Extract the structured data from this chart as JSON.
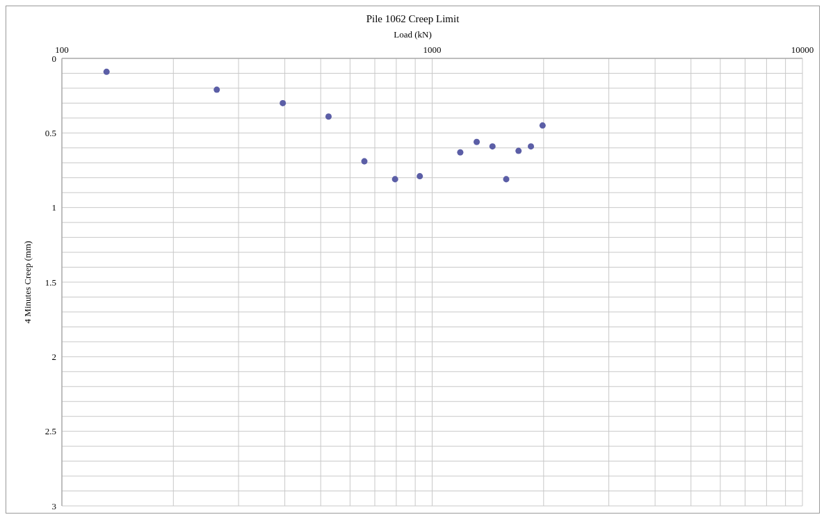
{
  "chart_data": {
    "type": "scatter",
    "title": "Pile 1062 Creep Limit",
    "xlabel": "Load (kN)",
    "ylabel": "4 Minutes Creep (mm)",
    "log": "x",
    "grid": true,
    "marker": "circle",
    "xlim": [
      100,
      10000
    ],
    "xticks": [
      100,
      {
        "value": 200,
        "label": null
      },
      {
        "value": 300,
        "label": null
      },
      {
        "value": 400,
        "label": null
      },
      {
        "value": 500,
        "label": null
      },
      {
        "value": 600,
        "label": null
      },
      {
        "value": 700,
        "label": null
      },
      {
        "value": 800,
        "label": null
      },
      {
        "value": 900,
        "label": null
      },
      1000,
      {
        "value": 2000,
        "label": null
      },
      {
        "value": 3000,
        "label": null
      },
      {
        "value": 4000,
        "label": null
      },
      {
        "value": 5000,
        "label": null
      },
      {
        "value": 6000,
        "label": null
      },
      {
        "value": 7000,
        "label": null
      },
      {
        "value": 8000,
        "label": null
      },
      {
        "value": 9000,
        "label": null
      },
      10000
    ],
    "ylim": [
      3,
      0
    ],
    "yticks": [
      0,
      {
        "value": 0.1,
        "label": null
      },
      {
        "value": 0.2,
        "label": null
      },
      {
        "value": 0.3,
        "label": null
      },
      {
        "value": 0.4,
        "label": null
      },
      0.5,
      {
        "value": 0.6,
        "label": null
      },
      {
        "value": 0.7,
        "label": null
      },
      {
        "value": 0.8,
        "label": null
      },
      {
        "value": 0.9,
        "label": null
      },
      1,
      {
        "value": 1.1,
        "label": null
      },
      {
        "value": 1.2,
        "label": null
      },
      {
        "value": 1.3,
        "label": null
      },
      {
        "value": 1.4,
        "label": null
      },
      1.5,
      {
        "value": 1.6,
        "label": null
      },
      {
        "value": 1.7,
        "label": null
      },
      {
        "value": 1.8,
        "label": null
      },
      {
        "value": 1.9,
        "label": null
      },
      2,
      {
        "value": 2.1,
        "label": null
      },
      {
        "value": 2.2,
        "label": null
      },
      {
        "value": 2.3,
        "label": null
      },
      {
        "value": 2.4,
        "label": null
      },
      2.5,
      {
        "value": 2.6,
        "label": null
      },
      {
        "value": 2.7,
        "label": null
      },
      {
        "value": 2.8,
        "label": null
      },
      {
        "value": 2.9,
        "label": null
      },
      3
    ],
    "series": [
      {
        "color": "#5b5ea6",
        "x": [
          132,
          262,
          395,
          525,
          656,
          794,
          926,
          1191,
          1319,
          1455,
          1585,
          1711,
          1848,
          1987
        ],
        "values": [
          0.09,
          0.21,
          0.3,
          0.39,
          0.69,
          0.81,
          0.79,
          0.63,
          0.56,
          0.59,
          0.81,
          0.62,
          0.59,
          0.45
        ]
      }
    ]
  }
}
